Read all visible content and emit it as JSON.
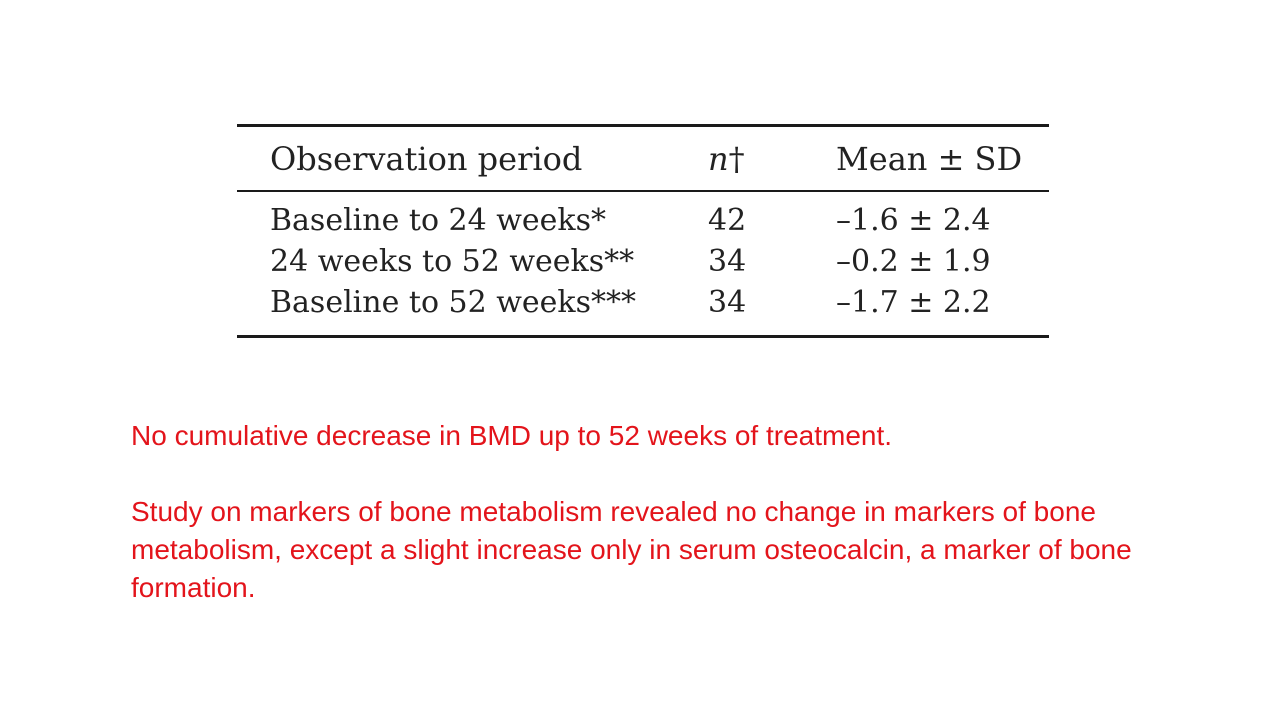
{
  "table": {
    "headers": {
      "period": "Observation period",
      "n_letter": "n",
      "n_mark": "†",
      "mean": "Mean ± SD"
    },
    "rows": [
      {
        "period": "Baseline to 24 weeks*",
        "n": "42",
        "mean": "–1.6 ± 2.4"
      },
      {
        "period": "24 weeks to 52 weeks**",
        "n": "34",
        "mean": "–0.2 ± 1.9"
      },
      {
        "period": "Baseline to 52 weeks***",
        "n": "34",
        "mean": "–1.7 ± 2.2"
      }
    ]
  },
  "notes": {
    "line1": "No cumulative decrease in BMD up to 52 weeks of treatment.",
    "line2": "Study on markers of bone metabolism revealed no change in markers of bone metabolism, except a slight increase only in serum osteocalcin, a marker of bone formation."
  },
  "colors": {
    "table_text": "#222222",
    "notes_text": "#e3141b",
    "background": "#ffffff"
  }
}
